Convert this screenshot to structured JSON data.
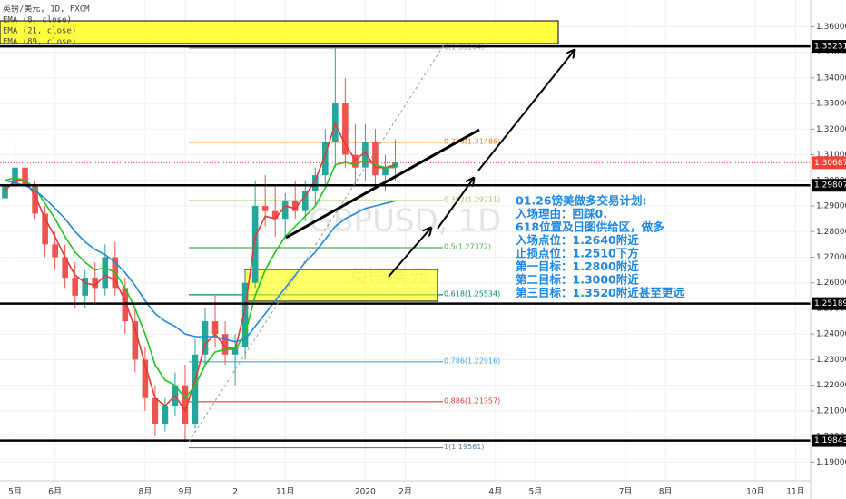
{
  "chart_data": {
    "type": "candlestick",
    "title": "英镑/美元, 1D, FXCM",
    "watermark": [
      "GBPUSD, 1D",
      "英镑/美元"
    ],
    "categories": [
      null,
      "5月",
      null,
      null,
      null,
      "6月",
      null,
      null,
      null,
      null,
      null,
      null,
      null,
      null,
      "8月",
      null,
      null,
      null,
      "9月",
      null,
      null,
      null,
      null,
      "2",
      null,
      null,
      null,
      null,
      "11月",
      null,
      null,
      null,
      null,
      null,
      null,
      null,
      "2020",
      null,
      null,
      null,
      "2月",
      null,
      null,
      null,
      null,
      null,
      null,
      null,
      null,
      "4月",
      null,
      null,
      null,
      "5月",
      null,
      null,
      null,
      null,
      null,
      null,
      null,
      null,
      "7月",
      null,
      null,
      null,
      "8月",
      null,
      null,
      null,
      null,
      null,
      null,
      null,
      null,
      "10月",
      null,
      null,
      null,
      "11月",
      null
    ],
    "ohlc": {
      "up_color": "#26a69a",
      "down_color": "#ef5350",
      "open": [
        1.293,
        1.298,
        1.305,
        1.298,
        1.287,
        1.275,
        1.27,
        1.262,
        1.255,
        1.262,
        1.258,
        1.27,
        1.258,
        1.245,
        1.23,
        1.215,
        1.205,
        1.212,
        1.22,
        1.205,
        1.232,
        1.245,
        1.24,
        1.232,
        1.235,
        1.26,
        1.29,
        1.288,
        1.285,
        1.292,
        1.288,
        1.296,
        1.302,
        1.315,
        1.33,
        1.31,
        1.305,
        1.315,
        1.302,
        1.305,
        null,
        null,
        null,
        null,
        null,
        null,
        null,
        null,
        null,
        null,
        null,
        null,
        null,
        null,
        null,
        null,
        null,
        null,
        null,
        null,
        null,
        null,
        null,
        null,
        null,
        null,
        null,
        null,
        null,
        null,
        null,
        null,
        null,
        null,
        null,
        null,
        null,
        null,
        null,
        null,
        null
      ],
      "high": [
        1.3,
        1.315,
        1.308,
        1.3,
        1.29,
        1.28,
        1.275,
        1.268,
        1.265,
        1.268,
        1.275,
        1.276,
        1.262,
        1.25,
        1.235,
        1.22,
        1.215,
        1.225,
        1.228,
        1.238,
        1.25,
        1.255,
        1.245,
        1.24,
        1.265,
        1.3,
        1.302,
        1.298,
        1.295,
        1.3,
        1.3,
        1.305,
        1.32,
        1.352,
        1.34,
        1.322,
        1.322,
        1.32,
        1.31,
        1.316,
        null,
        null,
        null,
        null,
        null,
        null,
        null,
        null,
        null,
        null,
        null,
        null,
        null,
        null,
        null,
        null,
        null,
        null,
        null,
        null,
        null,
        null,
        null,
        null,
        null,
        null,
        null,
        null,
        null,
        null,
        null,
        null,
        null,
        null,
        null,
        null,
        null,
        null,
        null,
        null,
        null
      ],
      "low": [
        1.288,
        1.296,
        1.295,
        1.285,
        1.27,
        1.265,
        1.258,
        1.25,
        1.25,
        1.252,
        1.255,
        1.255,
        1.24,
        1.225,
        1.21,
        1.2,
        1.202,
        1.208,
        1.198,
        1.203,
        1.228,
        1.235,
        1.228,
        1.22,
        1.23,
        1.258,
        1.282,
        1.278,
        1.278,
        1.285,
        1.284,
        1.29,
        1.298,
        1.305,
        1.305,
        1.298,
        1.3,
        1.298,
        1.296,
        1.3,
        null,
        null,
        null,
        null,
        null,
        null,
        null,
        null,
        null,
        null,
        null,
        null,
        null,
        null,
        null,
        null,
        null,
        null,
        null,
        null,
        null,
        null,
        null,
        null,
        null,
        null,
        null,
        null,
        null,
        null,
        null,
        null,
        null,
        null,
        null,
        null,
        null,
        null,
        null,
        null,
        null
      ],
      "close": [
        1.298,
        1.305,
        1.298,
        1.287,
        1.275,
        1.27,
        1.262,
        1.255,
        1.262,
        1.258,
        1.27,
        1.258,
        1.245,
        1.23,
        1.215,
        1.205,
        1.212,
        1.22,
        1.205,
        1.232,
        1.245,
        1.24,
        1.232,
        1.235,
        1.26,
        1.29,
        1.288,
        1.285,
        1.292,
        1.288,
        1.296,
        1.302,
        1.315,
        1.33,
        1.31,
        1.305,
        1.315,
        1.302,
        1.305,
        1.307,
        null,
        null,
        null,
        null,
        null,
        null,
        null,
        null,
        null,
        null,
        null,
        null,
        null,
        null,
        null,
        null,
        null,
        null,
        null,
        null,
        null,
        null,
        null,
        null,
        null,
        null,
        null,
        null,
        null,
        null,
        null,
        null,
        null,
        null,
        null,
        null,
        null,
        null,
        null,
        null,
        null
      ]
    },
    "series": [
      {
        "name": "EMA (8, close)",
        "color": "#e53935",
        "values": [
          1.296,
          1.3,
          1.3,
          1.294,
          1.285,
          1.278,
          1.27,
          1.263,
          1.26,
          1.259,
          1.263,
          1.261,
          1.253,
          1.242,
          1.228,
          1.215,
          1.212,
          1.216,
          1.21,
          1.222,
          1.236,
          1.24,
          1.235,
          1.234,
          1.25,
          1.278,
          1.286,
          1.285,
          1.29,
          1.289,
          1.294,
          1.3,
          1.31,
          1.322,
          1.314,
          1.308,
          1.311,
          1.305,
          1.305,
          1.306,
          null,
          null,
          null,
          null,
          null,
          null,
          null,
          null,
          null,
          null,
          null,
          null,
          null,
          null,
          null,
          null,
          null,
          null,
          null,
          null,
          null,
          null,
          null,
          null,
          null,
          null,
          null,
          null,
          null,
          null,
          null,
          null,
          null,
          null,
          null,
          null,
          null,
          null,
          null,
          null,
          null
        ]
      },
      {
        "name": "EMA (21, close)",
        "color": "#22c422",
        "values": [
          1.3,
          1.301,
          1.3,
          1.297,
          1.291,
          1.285,
          1.278,
          1.272,
          1.268,
          1.265,
          1.266,
          1.264,
          1.258,
          1.25,
          1.24,
          1.228,
          1.222,
          1.22,
          1.215,
          1.22,
          1.228,
          1.233,
          1.234,
          1.234,
          1.24,
          1.255,
          1.265,
          1.272,
          1.278,
          1.282,
          1.286,
          1.29,
          1.297,
          1.306,
          1.307,
          1.306,
          1.308,
          1.306,
          1.305,
          1.305,
          null,
          null,
          null,
          null,
          null,
          null,
          null,
          null,
          null,
          null,
          null,
          null,
          null,
          null,
          null,
          null,
          null,
          null,
          null,
          null,
          null,
          null,
          null,
          null,
          null,
          null,
          null,
          null,
          null,
          null,
          null,
          null,
          null,
          null,
          null,
          null,
          null,
          null,
          null,
          null,
          null
        ]
      },
      {
        "name": "EMA (89, close)",
        "color": "#1e88e5",
        "values": [
          1.3,
          1.299,
          1.298,
          1.296,
          1.293,
          1.289,
          1.285,
          1.28,
          1.276,
          1.273,
          1.271,
          1.268,
          1.264,
          1.259,
          1.253,
          1.248,
          1.245,
          1.243,
          1.24,
          1.239,
          1.239,
          1.239,
          1.238,
          1.237,
          1.238,
          1.243,
          1.248,
          1.253,
          1.258,
          1.263,
          1.268,
          1.272,
          1.277,
          1.282,
          1.285,
          1.287,
          1.289,
          1.29,
          1.291,
          1.292,
          null,
          null,
          null,
          null,
          null,
          null,
          null,
          null,
          null,
          null,
          null,
          null,
          null,
          null,
          null,
          null,
          null,
          null,
          null,
          null,
          null,
          null,
          null,
          null,
          null,
          null,
          null,
          null,
          null,
          null,
          null,
          null,
          null,
          null,
          null,
          null,
          null,
          null,
          null,
          null,
          null
        ]
      }
    ],
    "fib": [
      {
        "label": "0(1.35164)",
        "value": 1.35164,
        "color": "#9e9e9e"
      },
      {
        "label": "0.236(1.31486)",
        "value": 1.31486,
        "color": "#f57c00"
      },
      {
        "label": "0.382(1.29211)",
        "value": 1.29211,
        "color": "#9ccc65"
      },
      {
        "label": "0.5(1.27372)",
        "value": 1.27372,
        "color": "#4caf50"
      },
      {
        "label": "0.618(1.25534)",
        "value": 1.25534,
        "color": "#00897b"
      },
      {
        "label": "0.786(1.22916)",
        "value": 1.22916,
        "color": "#42a5f5"
      },
      {
        "label": "0.886(1.21357)",
        "value": 1.21357,
        "color": "#e53935"
      },
      {
        "label": "1(1.19561)",
        "value": 1.19561,
        "color": "#5c7fa8"
      }
    ],
    "levels": [
      1.35231,
      1.29807,
      1.25189,
      1.19843
    ],
    "last_price": {
      "value": 1.30687,
      "color": "#f44336"
    },
    "plan": [
      "01.26镑美做多交易计划:",
      "入场理由：回踩0.",
      "618位置及日图供给区，做多",
      "入场点位：1.2640附近",
      "止损点位：1.2510下方",
      "第一目标：1.2800附近",
      "第二目标：1.3000附近",
      "第三目标：1.3520附近甚至更远"
    ],
    "ylim": [
      1.1827,
      1.3704
    ],
    "yticks": [
      {
        "value": 1.19,
        "label": "1.19000"
      },
      {
        "value": 1.2,
        "label": "1.20000"
      },
      {
        "value": 1.21,
        "label": "1.21000"
      },
      {
        "value": 1.22,
        "label": "1.22000"
      },
      {
        "value": 1.23,
        "label": "1.23000"
      },
      {
        "value": 1.24,
        "label": "1.24000"
      },
      {
        "value": 1.25,
        "label": "1.25000"
      },
      {
        "value": 1.26,
        "label": "1.26000"
      },
      {
        "value": 1.27,
        "label": "1.27000"
      },
      {
        "value": 1.28,
        "label": "1.28000"
      },
      {
        "value": 1.29,
        "label": "1.29000"
      },
      {
        "value": 1.3,
        "label": "1.30000"
      },
      {
        "value": 1.31,
        "label": "1.31000"
      },
      {
        "value": 1.32,
        "label": "1.32000"
      },
      {
        "value": 1.33,
        "label": "1.33000"
      },
      {
        "value": 1.34,
        "label": "1.34000"
      },
      {
        "value": 1.35,
        "label": "1.35000"
      },
      {
        "value": 1.36,
        "label": "1.36000"
      }
    ],
    "grid": true
  }
}
